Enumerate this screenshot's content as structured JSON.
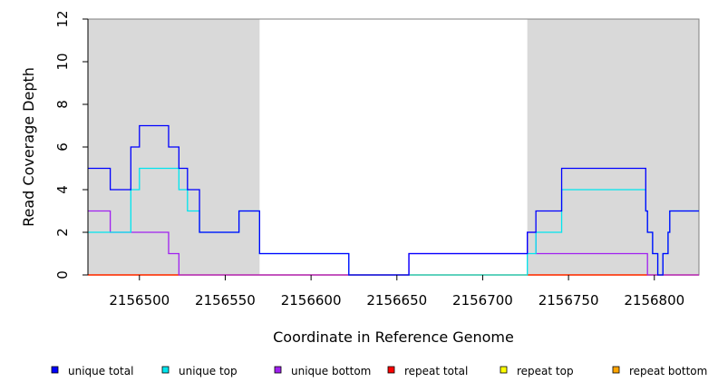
{
  "chart_data": {
    "type": "line",
    "xlabel": "Coordinate in Reference Genome",
    "ylabel": "Read Coverage Depth",
    "xlim": [
      2156470,
      2156826
    ],
    "ylim": [
      0,
      12
    ],
    "x_ticks": [
      {
        "value": 2156500,
        "label": "2156500"
      },
      {
        "value": 2156550,
        "label": "2156550"
      },
      {
        "value": 2156600,
        "label": "2156600"
      },
      {
        "value": 2156650,
        "label": "2156650"
      },
      {
        "value": 2156700,
        "label": "2156700"
      },
      {
        "value": 2156750,
        "label": "2156750"
      },
      {
        "value": 2156800,
        "label": "2156800"
      }
    ],
    "y_ticks": [
      {
        "value": 0,
        "label": "0"
      },
      {
        "value": 2,
        "label": "2"
      },
      {
        "value": 4,
        "label": "4"
      },
      {
        "value": 6,
        "label": "6"
      },
      {
        "value": 8,
        "label": "8"
      },
      {
        "value": 10,
        "label": "10"
      },
      {
        "value": 12,
        "label": "12"
      }
    ],
    "shaded_regions": [
      {
        "from": 2156470,
        "to": 2156570
      },
      {
        "from": 2156726,
        "to": 2156826
      }
    ],
    "shade_color": "#d9d9d9",
    "legend_position": "bottom",
    "series": [
      {
        "name": "unique total",
        "color": "#0000ff",
        "step": true,
        "points": [
          [
            2156470,
            5
          ],
          [
            2156483,
            5
          ],
          [
            2156483,
            4
          ],
          [
            2156495,
            4
          ],
          [
            2156495,
            6
          ],
          [
            2156500,
            6
          ],
          [
            2156500,
            7
          ],
          [
            2156517,
            7
          ],
          [
            2156517,
            6
          ],
          [
            2156523,
            6
          ],
          [
            2156523,
            5
          ],
          [
            2156528,
            5
          ],
          [
            2156528,
            4
          ],
          [
            2156535,
            4
          ],
          [
            2156535,
            2
          ],
          [
            2156558,
            2
          ],
          [
            2156558,
            3
          ],
          [
            2156570,
            3
          ],
          [
            2156570,
            1
          ],
          [
            2156622,
            1
          ],
          [
            2156622,
            0
          ],
          [
            2156657,
            0
          ],
          [
            2156657,
            1
          ],
          [
            2156726,
            1
          ],
          [
            2156726,
            2
          ],
          [
            2156731,
            2
          ],
          [
            2156731,
            3
          ],
          [
            2156746,
            3
          ],
          [
            2156746,
            5
          ],
          [
            2156795,
            5
          ],
          [
            2156795,
            3
          ],
          [
            2156796,
            3
          ],
          [
            2156796,
            2
          ],
          [
            2156799,
            2
          ],
          [
            2156799,
            1
          ],
          [
            2156802,
            1
          ],
          [
            2156802,
            0
          ],
          [
            2156805,
            0
          ],
          [
            2156805,
            1
          ],
          [
            2156808,
            1
          ],
          [
            2156808,
            2
          ],
          [
            2156809,
            2
          ],
          [
            2156809,
            3
          ],
          [
            2156826,
            3
          ]
        ]
      },
      {
        "name": "unique top",
        "color": "#00e5ee",
        "step": true,
        "points": [
          [
            2156470,
            2
          ],
          [
            2156495,
            2
          ],
          [
            2156495,
            4
          ],
          [
            2156500,
            4
          ],
          [
            2156500,
            5
          ],
          [
            2156523,
            5
          ],
          [
            2156523,
            4
          ],
          [
            2156528,
            4
          ],
          [
            2156528,
            3
          ],
          [
            2156535,
            3
          ],
          [
            2156535,
            2
          ],
          [
            2156558,
            2
          ],
          [
            2156558,
            3
          ],
          [
            2156570,
            3
          ],
          [
            2156570,
            1
          ],
          [
            2156622,
            1
          ],
          [
            2156622,
            0
          ],
          [
            2156726,
            0
          ],
          [
            2156726,
            1
          ],
          [
            2156731,
            1
          ],
          [
            2156731,
            2
          ],
          [
            2156746,
            2
          ],
          [
            2156746,
            4
          ],
          [
            2156795,
            4
          ],
          [
            2156795,
            3
          ],
          [
            2156796,
            3
          ],
          [
            2156796,
            2
          ],
          [
            2156799,
            2
          ],
          [
            2156799,
            1
          ],
          [
            2156802,
            1
          ],
          [
            2156802,
            0
          ],
          [
            2156805,
            0
          ],
          [
            2156805,
            1
          ],
          [
            2156808,
            1
          ],
          [
            2156808,
            2
          ],
          [
            2156809,
            2
          ],
          [
            2156809,
            3
          ],
          [
            2156826,
            3
          ]
        ]
      },
      {
        "name": "unique bottom",
        "color": "#a020f0",
        "step": true,
        "points": [
          [
            2156470,
            3
          ],
          [
            2156483,
            3
          ],
          [
            2156483,
            2
          ],
          [
            2156517,
            2
          ],
          [
            2156517,
            1
          ],
          [
            2156523,
            1
          ],
          [
            2156523,
            0
          ],
          [
            2156657,
            0
          ],
          [
            2156657,
            1
          ],
          [
            2156726,
            1
          ],
          [
            2156726,
            2
          ],
          [
            2156731,
            2
          ],
          [
            2156731,
            1
          ],
          [
            2156796,
            1
          ],
          [
            2156796,
            0
          ],
          [
            2156826,
            0
          ]
        ]
      },
      {
        "name": "repeat total",
        "color": "#ff0000",
        "step": true,
        "points": [
          [
            2156470,
            0
          ],
          [
            2156826,
            0
          ]
        ]
      },
      {
        "name": "repeat top",
        "color": "#ffff00",
        "step": true,
        "points": [
          [
            2156470,
            0
          ],
          [
            2156826,
            0
          ]
        ]
      },
      {
        "name": "repeat bottom",
        "color": "#ffa500",
        "step": true,
        "points": [
          [
            2156470,
            0
          ],
          [
            2156826,
            0
          ]
        ]
      }
    ],
    "legend": [
      {
        "label": "unique total",
        "color": "#0000ff"
      },
      {
        "label": "unique top",
        "color": "#00e5ee"
      },
      {
        "label": "unique bottom",
        "color": "#a020f0"
      },
      {
        "label": "repeat total",
        "color": "#ff0000"
      },
      {
        "label": "repeat top",
        "color": "#ffff00"
      },
      {
        "label": "repeat bottom",
        "color": "#ffa500"
      }
    ]
  }
}
